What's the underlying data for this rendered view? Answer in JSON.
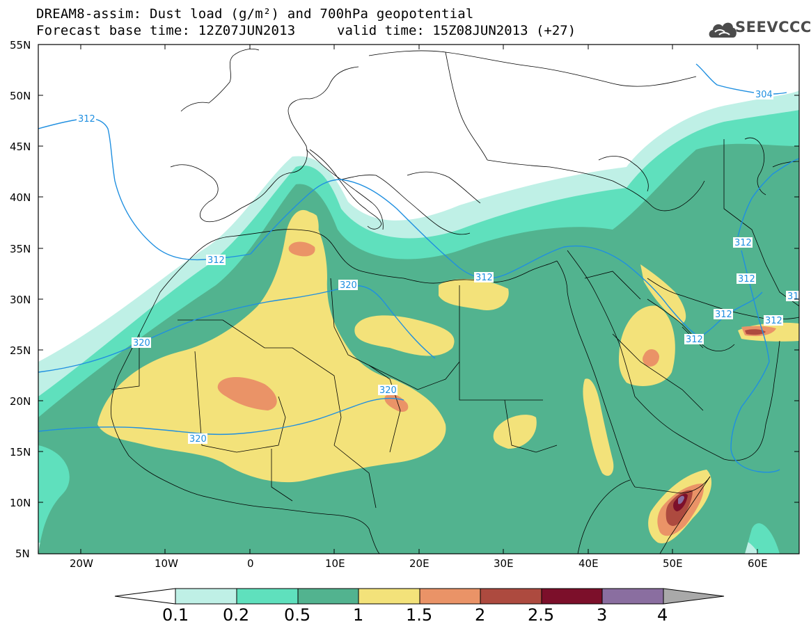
{
  "header": {
    "title_line1": "DREAM8-assim: Dust load (g/m²) and 700hPa geopotential",
    "title_line2_base": "Forecast base time: 12Z07JUN2013",
    "title_line2_valid": "valid time: 15Z08JUN2013 (+27)",
    "logo_text": "SEEVCCC"
  },
  "map": {
    "lat_labels": [
      "55N",
      "50N",
      "45N",
      "40N",
      "35N",
      "30N",
      "25N",
      "20N",
      "15N",
      "10N",
      "5N"
    ],
    "lon_labels": [
      "20W",
      "10W",
      "0",
      "10E",
      "20E",
      "30E",
      "40E",
      "50E",
      "60E"
    ],
    "geopotential_labels": [
      "304",
      "312",
      "312",
      "312",
      "312",
      "312",
      "312",
      "312",
      "312",
      "31",
      "320",
      "320",
      "320",
      "320"
    ]
  },
  "colorbar": {
    "levels": [
      "0.1",
      "0.2",
      "0.5",
      "1",
      "1.5",
      "2",
      "2.5",
      "3",
      "4"
    ],
    "colors": [
      "#ffffff",
      "#bff0e6",
      "#5fe0bd",
      "#52b38f",
      "#f3e27a",
      "#ea9367",
      "#ad4a3f",
      "#7c0f2a",
      "#8a6ea0",
      "#a9a9a9"
    ]
  }
}
